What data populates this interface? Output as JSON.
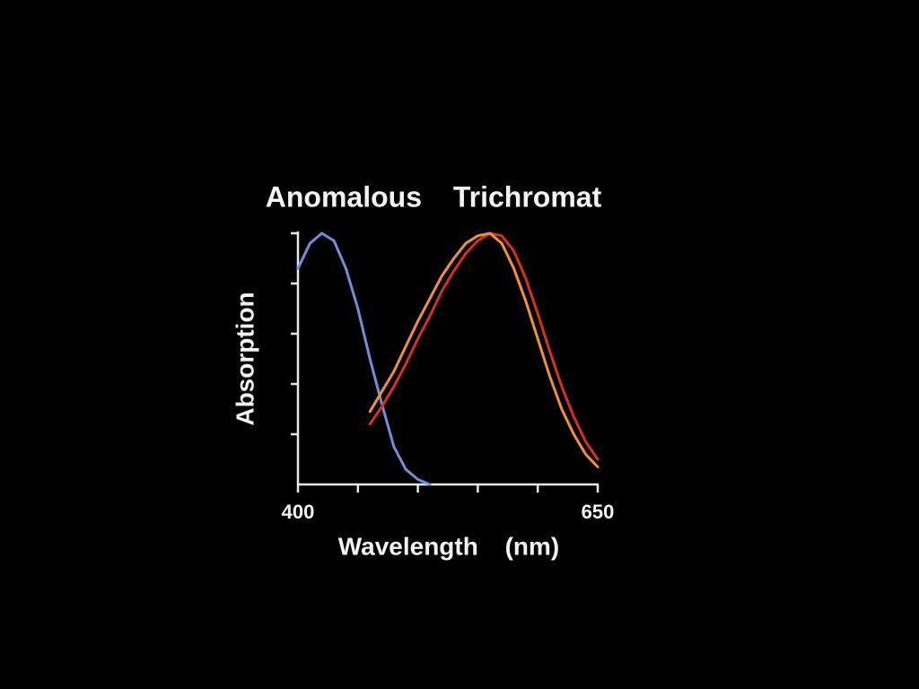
{
  "chart_data": {
    "type": "line",
    "title": "Anomalous Trichromat",
    "x_label": "Wavelength (nm)",
    "y_label": "Absorption",
    "xlim": [
      400,
      650
    ],
    "xticks": [
      400,
      650
    ],
    "minor_xticks": [
      450,
      500,
      550,
      600
    ],
    "ylim": [
      0,
      1
    ],
    "minor_yticks": [
      0.2,
      0.4,
      0.6,
      0.8,
      1
    ],
    "grid": false,
    "series": [
      {
        "color": "#6f8fd8",
        "x": [
          400,
          410,
          420,
          430,
          440,
          450,
          460,
          470,
          480,
          490,
          500,
          510
        ],
        "values": [
          0.86,
          0.96,
          1.0,
          0.97,
          0.86,
          0.7,
          0.5,
          0.32,
          0.15,
          0.06,
          0.02,
          0
        ]
      },
      {
        "color": "#d8301c",
        "x": [
          460,
          470,
          480,
          490,
          500,
          510,
          520,
          530,
          540,
          550,
          560,
          570,
          580,
          590,
          600,
          610,
          620,
          630,
          640,
          650
        ],
        "values": [
          0.24,
          0.31,
          0.39,
          0.48,
          0.58,
          0.67,
          0.77,
          0.85,
          0.92,
          0.97,
          1.0,
          0.99,
          0.93,
          0.82,
          0.68,
          0.53,
          0.39,
          0.27,
          0.17,
          0.1
        ]
      },
      {
        "color": "#f0903a",
        "x": [
          460,
          470,
          480,
          490,
          500,
          510,
          520,
          530,
          540,
          550,
          560,
          570,
          580,
          590,
          600,
          610,
          620,
          630,
          640,
          650
        ],
        "values": [
          0.29,
          0.37,
          0.45,
          0.55,
          0.65,
          0.74,
          0.83,
          0.9,
          0.96,
          0.99,
          1.0,
          0.96,
          0.86,
          0.73,
          0.58,
          0.43,
          0.3,
          0.2,
          0.12,
          0.07
        ]
      }
    ]
  }
}
